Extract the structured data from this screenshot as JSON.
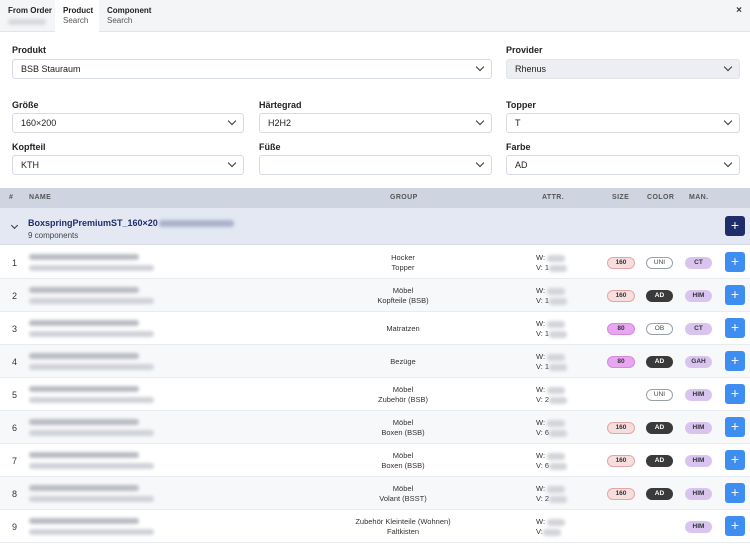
{
  "tabs": [
    {
      "label": "From Order",
      "sub": ""
    },
    {
      "label": "Product",
      "sub": "Search"
    },
    {
      "label": "Component",
      "sub": "Search"
    }
  ],
  "close_label": "×",
  "form": {
    "produkt": {
      "label": "Produkt",
      "value": "BSB Stauraum"
    },
    "provider": {
      "label": "Provider",
      "value": "Rhenus"
    },
    "groesse": {
      "label": "Größe",
      "value": "160×200"
    },
    "haertegrad": {
      "label": "Härtegrad",
      "value": "H2H2"
    },
    "topper": {
      "label": "Topper",
      "value": "T"
    },
    "kopfteil": {
      "label": "Kopfteil",
      "value": "KTH"
    },
    "fuesse": {
      "label": "Füße",
      "value": ""
    },
    "farbe": {
      "label": "Farbe",
      "value": "AD"
    }
  },
  "table": {
    "headers": {
      "num": "#",
      "name": "NAME",
      "group": "GROUP",
      "attr": "ATTR.",
      "size": "SIZE",
      "color": "COLOR",
      "man": "MAN."
    },
    "group": {
      "name": "BoxspringPremiumST_160×20",
      "count": "9 components",
      "add": "+"
    },
    "rows": [
      {
        "num": "1",
        "g1": "Hocker",
        "g2": "Topper",
        "w": "W:",
        "v": "V: 1",
        "size": "160",
        "color": "UNI",
        "man": "CT",
        "add": "+"
      },
      {
        "num": "2",
        "g1": "Möbel",
        "g2": "Kopfteile (BSB)",
        "w": "W:",
        "v": "V: 1",
        "size": "160",
        "color": "AD",
        "man": "HIM",
        "add": "+"
      },
      {
        "num": "3",
        "g1": "Matratzen",
        "g2": "",
        "w": "W:",
        "v": "V: 1",
        "size": "80",
        "color": "OB",
        "man": "CT",
        "add": "+"
      },
      {
        "num": "4",
        "g1": "Bezüge",
        "g2": "",
        "w": "W:",
        "v": "V: 1",
        "size": "80",
        "color": "AD",
        "man": "GAH",
        "add": "+"
      },
      {
        "num": "5",
        "g1": "Möbel",
        "g2": "Zubehör (BSB)",
        "w": "W:",
        "v": "V: 2",
        "size": "",
        "color": "UNI",
        "man": "HIM",
        "add": "+"
      },
      {
        "num": "6",
        "g1": "Möbel",
        "g2": "Boxen (BSB)",
        "w": "W:",
        "v": "V: 6",
        "size": "160",
        "color": "AD",
        "man": "HIM",
        "add": "+"
      },
      {
        "num": "7",
        "g1": "Möbel",
        "g2": "Boxen (BSB)",
        "w": "W:",
        "v": "V: 6",
        "size": "160",
        "color": "AD",
        "man": "HIM",
        "add": "+"
      },
      {
        "num": "8",
        "g1": "Möbel",
        "g2": "Volant (BSST)",
        "w": "W:",
        "v": "V: 2",
        "size": "160",
        "color": "AD",
        "man": "HIM",
        "add": "+"
      },
      {
        "num": "9",
        "g1": "Zubehör Kleinteile (Wohnen)",
        "g2": "Faltkisten",
        "w": "W:",
        "v": "V:",
        "size": "",
        "color": "",
        "man": "HIM",
        "add": "+"
      }
    ]
  },
  "colors": {
    "accent": "#3d8ef0",
    "navy": "#1f2d6b",
    "header": "#cfd5e0",
    "group_bg": "#e3e8f3"
  }
}
